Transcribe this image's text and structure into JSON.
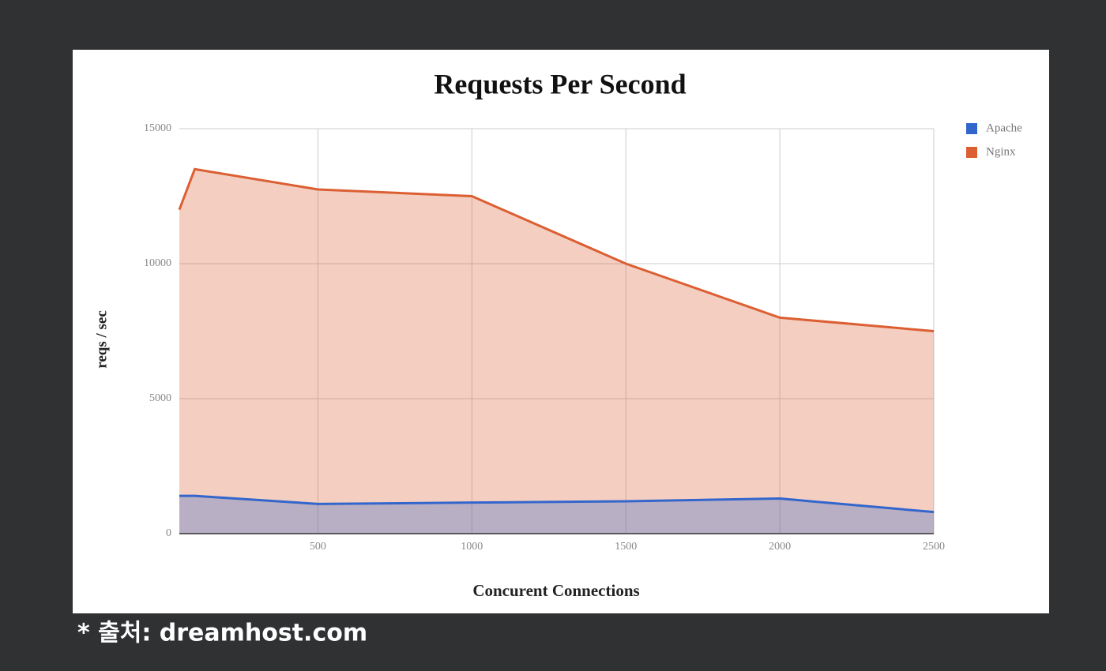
{
  "chart_data": {
    "type": "area",
    "title": "Requests Per Second",
    "x_label": "Concurent Connections",
    "y_label": "reqs / sec",
    "x": [
      50,
      100,
      500,
      1000,
      1500,
      2000,
      2500
    ],
    "series": [
      {
        "name": "Apache",
        "color": "#3366cc",
        "values": [
          1400,
          1400,
          1100,
          1150,
          1200,
          1300,
          800
        ]
      },
      {
        "name": "Nginx",
        "color": "#dc5f33",
        "values": [
          12000,
          13500,
          12750,
          12500,
          10000,
          8000,
          7500
        ]
      }
    ],
    "xlim": [
      50,
      2500
    ],
    "xticks": [
      500,
      1000,
      1500,
      2000,
      2500
    ],
    "ylim": [
      0,
      15000
    ],
    "yticks": [
      0,
      5000,
      10000,
      15000
    ],
    "grid": true,
    "legend": "right"
  },
  "caption": "* 출처: dreamhost.com"
}
